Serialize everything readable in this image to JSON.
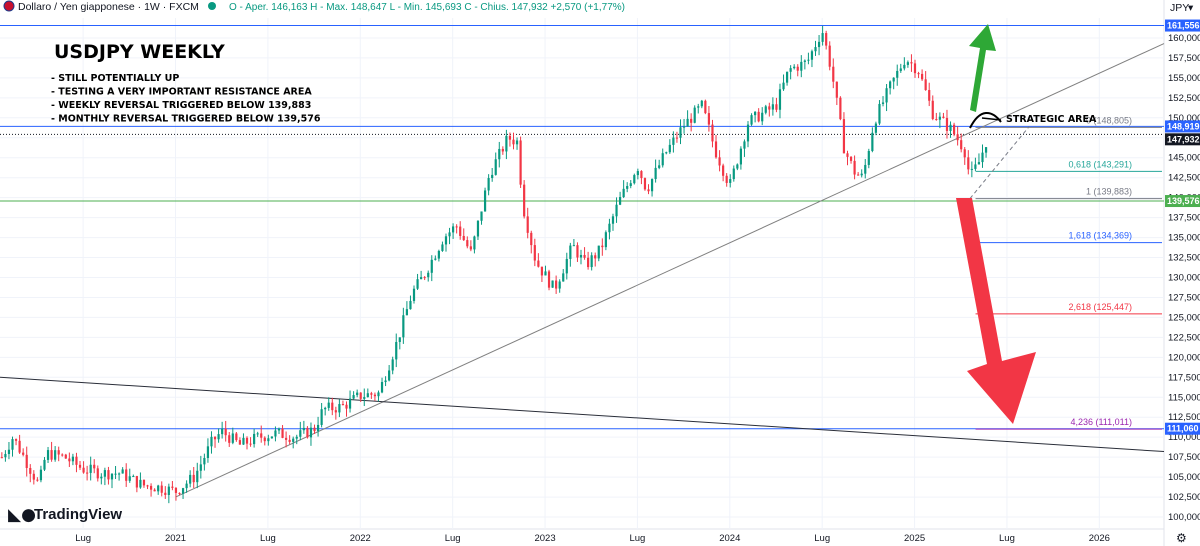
{
  "header": {
    "symbol": "Dollaro / Yen giapponese · 1W · FXCM",
    "ohlc": [
      {
        "label": "O",
        "value": "146,163"
      },
      {
        "label": "H",
        "value": "148,647"
      },
      {
        "label": "L",
        "value": "145,693"
      },
      {
        "label": "C",
        "value": "147,932"
      }
    ],
    "ohlc_prefix": "O - Aper.",
    "ohlc_text": "O - Aper. 146,163  H - Max. 148,647  L - Min. 145,693  C - Chius. 147,932  +2,570 (+1,77%)",
    "change": "+2,570 (+1,77%)",
    "currency": "JPY"
  },
  "annotations": {
    "title": "USDJPY WEEKLY",
    "notes": [
      "- STILL POTENTIALLY UP",
      "- TESTING A VERY IMPORTANT RESISTANCE AREA",
      "- WEEKLY REVERSAL TRIGGERED BELOW 139,883",
      "- MONTHLY REVERSAL TRIGGERED BELOW 139,576"
    ],
    "strategic_area": "STRATEGIC AREA"
  },
  "logo_text": "TradingView",
  "colors": {
    "up": "#089981",
    "down": "#f23645",
    "blue_line": "#2962ff",
    "green_line": "#4caf50",
    "arrow_up": "#2ea836",
    "arrow_down": "#f23645",
    "trend": "#000000"
  },
  "chart_data": {
    "type": "candlestick",
    "instrument": "USDJPY",
    "timeframe": "1W",
    "y_axis": {
      "ticks": [
        100,
        102.5,
        105,
        107.5,
        110,
        112.5,
        115,
        117.5,
        120,
        122.5,
        125,
        127.5,
        130,
        132.5,
        135,
        137.5,
        140,
        142.5,
        145,
        147.5,
        150,
        152.5,
        155,
        157.5,
        160
      ],
      "tick_labels": [
        "100,000",
        "102,500",
        "105,000",
        "107,500",
        "110,000",
        "112,500",
        "115,000",
        "117,500",
        "120,000",
        "122,500",
        "125,000",
        "127,500",
        "130,000",
        "132,500",
        "135,000",
        "137,500",
        "140,000",
        "142,500",
        "145,000",
        "147,500",
        "150,000",
        "152,500",
        "155,000",
        "157,500",
        "160,000"
      ],
      "ylim": [
        98.5,
        162.5
      ]
    },
    "x_axis": {
      "labels": [
        "Lug",
        "2021",
        "Lug",
        "2022",
        "Lug",
        "2023",
        "Lug",
        "2024",
        "Lug",
        "2025",
        "Lug",
        "2026"
      ],
      "label_times": [
        2020.5,
        2021.0,
        2021.5,
        2022.0,
        2022.5,
        2023.0,
        2023.5,
        2024.0,
        2024.5,
        2025.0,
        2025.5,
        2026.0
      ],
      "xlim": [
        2020.05,
        2026.35
      ]
    },
    "price_path": [
      [
        2020.06,
        107.5
      ],
      [
        2020.12,
        110.0
      ],
      [
        2020.18,
        107.5
      ],
      [
        2020.26,
        104.0
      ],
      [
        2020.3,
        108.0
      ],
      [
        2020.4,
        107.5
      ],
      [
        2020.5,
        106.0
      ],
      [
        2020.6,
        105.5
      ],
      [
        2020.7,
        105.5
      ],
      [
        2020.82,
        104.0
      ],
      [
        2020.92,
        103.7
      ],
      [
        2021.0,
        103.2
      ],
      [
        2021.1,
        105.0
      ],
      [
        2021.2,
        109.5
      ],
      [
        2021.25,
        110.7
      ],
      [
        2021.35,
        109.0
      ],
      [
        2021.45,
        110.0
      ],
      [
        2021.55,
        110.5
      ],
      [
        2021.65,
        110.0
      ],
      [
        2021.75,
        111.0
      ],
      [
        2021.8,
        113.5
      ],
      [
        2021.9,
        113.8
      ],
      [
        2022.0,
        115.2
      ],
      [
        2022.1,
        115.5
      ],
      [
        2022.2,
        122.0
      ],
      [
        2022.28,
        128.0
      ],
      [
        2022.35,
        130.5
      ],
      [
        2022.45,
        135.0
      ],
      [
        2022.52,
        136.5
      ],
      [
        2022.6,
        133.0
      ],
      [
        2022.7,
        143.0
      ],
      [
        2022.8,
        147.5
      ],
      [
        2022.85,
        147.0
      ],
      [
        2022.88,
        139.0
      ],
      [
        2022.95,
        132.0
      ],
      [
        2023.05,
        128.5
      ],
      [
        2023.15,
        134.0
      ],
      [
        2023.22,
        131.5
      ],
      [
        2023.3,
        133.5
      ],
      [
        2023.4,
        139.5
      ],
      [
        2023.5,
        144.0
      ],
      [
        2023.55,
        141.0
      ],
      [
        2023.65,
        145.5
      ],
      [
        2023.75,
        149.0
      ],
      [
        2023.85,
        151.5
      ],
      [
        2023.92,
        146.0
      ],
      [
        2024.0,
        141.5
      ],
      [
        2024.1,
        149.5
      ],
      [
        2024.25,
        151.5
      ],
      [
        2024.32,
        156.0
      ],
      [
        2024.42,
        157.0
      ],
      [
        2024.5,
        161.0
      ],
      [
        2024.55,
        156.0
      ],
      [
        2024.62,
        146.0
      ],
      [
        2024.68,
        143.0
      ],
      [
        2024.72,
        142.5
      ],
      [
        2024.78,
        149.5
      ],
      [
        2024.87,
        154.0
      ],
      [
        2024.95,
        157.5
      ],
      [
        2025.02,
        156.0
      ],
      [
        2025.1,
        150.5
      ],
      [
        2025.2,
        148.5
      ],
      [
        2025.27,
        146.0
      ],
      [
        2025.3,
        142.5
      ],
      [
        2025.35,
        144.5
      ],
      [
        2025.4,
        147.9
      ]
    ],
    "current_price": 147.932,
    "levels": [
      {
        "price": 161.556,
        "label": "161,556",
        "color": "#2962ff"
      },
      {
        "price": 148.919,
        "label": "148,919",
        "color": "#2962ff"
      },
      {
        "price": 139.576,
        "label": "139,576",
        "color": "#4caf50"
      },
      {
        "price": 111.06,
        "label": "111,060",
        "color": "#2962ff"
      }
    ],
    "fibonacci": [
      {
        "ratio": "0",
        "price": 148.805,
        "label": "0 (148,805)",
        "color": "#787b86"
      },
      {
        "ratio": "0,618",
        "price": 143.291,
        "label": "0,618 (143,291)",
        "color": "#26a69a"
      },
      {
        "ratio": "1",
        "price": 139.883,
        "label": "1 (139,883)",
        "color": "#787b86"
      },
      {
        "ratio": "1,618",
        "price": 134.369,
        "label": "1,618 (134,369)",
        "color": "#2962ff"
      },
      {
        "ratio": "2,618",
        "price": 125.447,
        "label": "2,618 (125,447)",
        "color": "#f23645"
      },
      {
        "ratio": "4,236",
        "price": 111.011,
        "label": "4,236 (111,011)",
        "color": "#9c27b0"
      }
    ],
    "trendlines": [
      {
        "from": [
          2021.0,
          102.5
        ],
        "to": [
          2026.35,
          159.3
        ]
      },
      {
        "from": [
          2020.05,
          117.5
        ],
        "to": [
          2026.35,
          108.2
        ]
      }
    ]
  }
}
